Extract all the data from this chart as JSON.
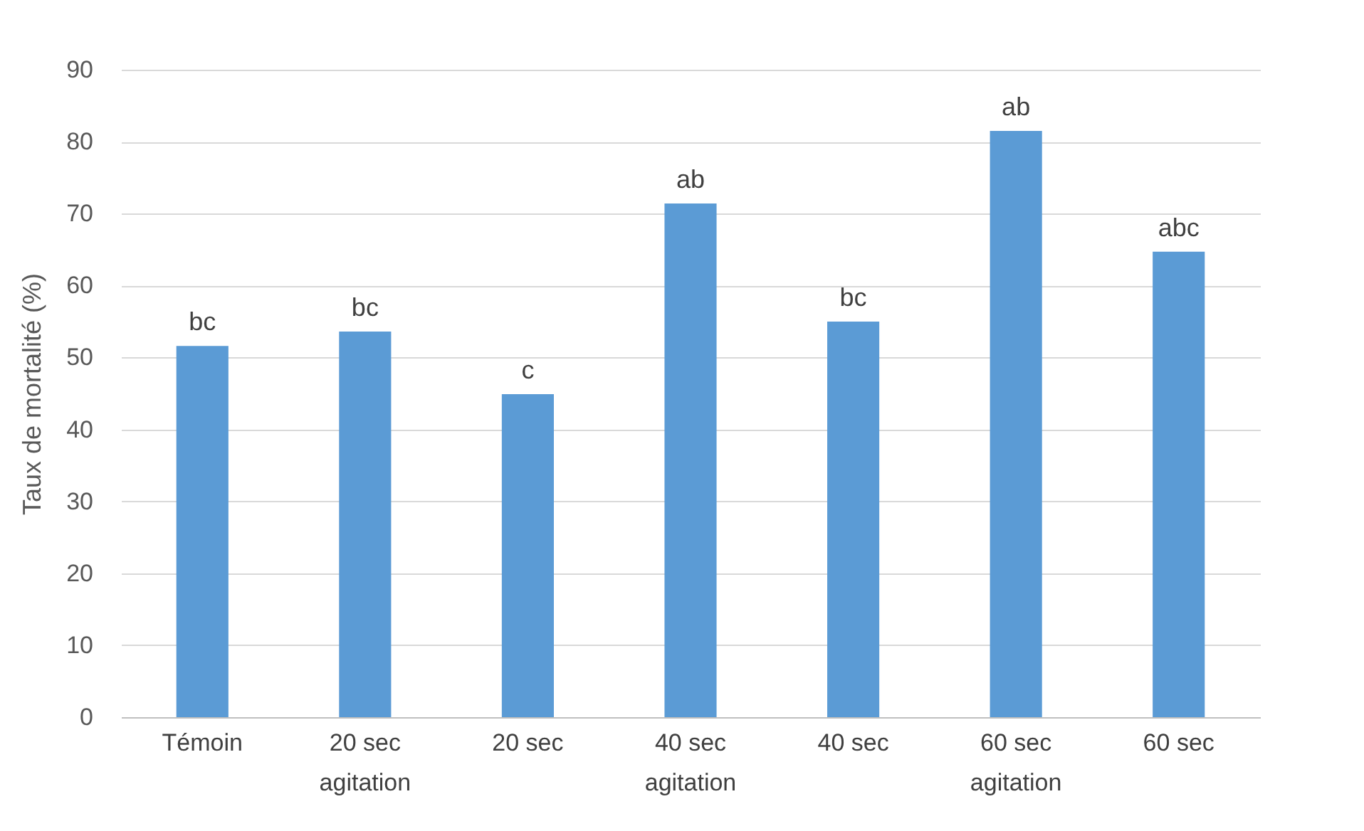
{
  "chart_data": {
    "type": "bar",
    "ylabel": "Taux de mortalité (%)",
    "categories": [
      "Témoin",
      "20 sec\nagitation",
      "20 sec",
      "40 sec\nagitation",
      "40 sec",
      "60 sec\nagitation",
      "60 sec"
    ],
    "values": [
      51.6,
      53.6,
      44.9,
      71.4,
      55,
      81.5,
      64.7
    ],
    "color": "#5b9bd5",
    "ylim": [
      0,
      90
    ],
    "yticks": [
      0,
      10,
      20,
      30,
      40,
      50,
      60,
      70,
      80,
      90
    ],
    "grid": "y",
    "annotations": [
      {
        "text": "bc",
        "x": "Témoin",
        "y": 51.6
      },
      {
        "text": "bc",
        "x": "20 sec\nagitation",
        "y": 53.6
      },
      {
        "text": "c",
        "x": "20 sec",
        "y": 44.9
      },
      {
        "text": "ab",
        "x": "40 sec\nagitation",
        "y": 71.4
      },
      {
        "text": "bc",
        "x": "40 sec",
        "y": 55
      },
      {
        "text": "ab",
        "x": "60 sec\nagitation",
        "y": 81.5
      },
      {
        "text": "abc",
        "x": "60 sec",
        "y": 64.7
      }
    ]
  }
}
